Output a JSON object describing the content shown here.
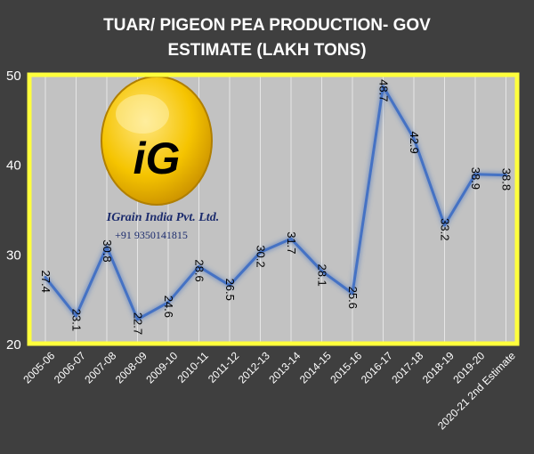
{
  "chart_data": {
    "type": "line",
    "title_line1": "TUAR/ PIGEON PEA PRODUCTION- GOV",
    "title_line2": "ESTIMATE (LAKH TONS)",
    "xlabel": "",
    "ylabel": "",
    "ylim": [
      20,
      50
    ],
    "yticks": [
      "20",
      "30",
      "40",
      "50"
    ],
    "categories": [
      "2005-06",
      "2006-07",
      "2007-08",
      "2008-09",
      "2009-10",
      "2010-11",
      "2011-12",
      "2012-13",
      "2013-14",
      "2014-15",
      "2015-16",
      "2016-17",
      "2017-18",
      "2018-19",
      "2019-20",
      "2020-21 2nd Estimate"
    ],
    "values": [
      27.4,
      23.1,
      30.8,
      22.7,
      24.6,
      28.6,
      26.5,
      30.2,
      31.7,
      28.1,
      25.6,
      48.7,
      42.9,
      33.2,
      38.9,
      38.8
    ],
    "data_labels": [
      "27.4",
      "23.1",
      "30.8",
      "22.7",
      "24.6",
      "28.6",
      "26.5",
      "30.2",
      "31.7",
      "28.1",
      "25.6",
      "48.7",
      "42.9",
      "33.2",
      "38.9",
      "38.8"
    ],
    "grid": "vertical",
    "line_color": "#4472c4",
    "plot_background": "#c2c2c2",
    "frame_color": "#ffff3c",
    "page_background": "#3f3f3f"
  },
  "watermark": {
    "logo_text": "iG",
    "company": "IGrain India Pvt. Ltd.",
    "phone": "+91 9350141815"
  }
}
